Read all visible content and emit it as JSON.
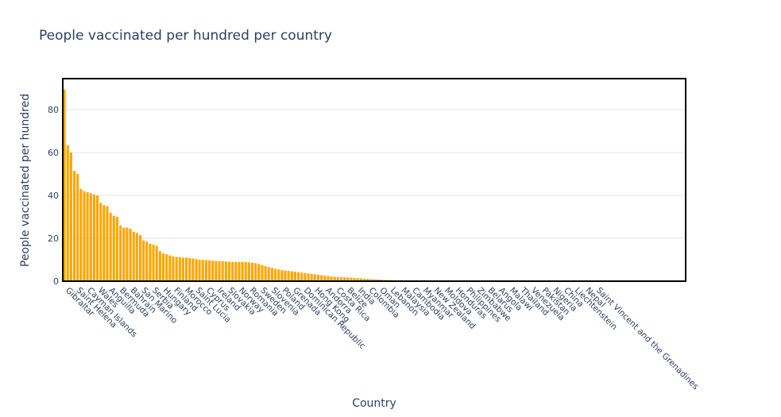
{
  "chart_data": {
    "type": "bar",
    "title": "People vaccinated per hundred per country",
    "xlabel": "Country",
    "ylabel": "People vaccinated per hundred",
    "ylim": [
      0,
      94.5
    ],
    "yticks": [
      0,
      20,
      40,
      60,
      80
    ],
    "grid": true,
    "bar_color": "#FFA500",
    "labeled_categories": [
      "Gibraltar",
      "Saint Helena",
      "Cayman Islands",
      "Wales",
      "Anguilla",
      "Bermuda",
      "Bahrain",
      "San Marino",
      "Serbia",
      "Hungary",
      "Finland",
      "Morocco",
      "Saint Lucia",
      "Cyprus",
      "Ireland",
      "Slovakia",
      "Norway",
      "Romania",
      "Sweden",
      "Slovenia",
      "Poland",
      "Grenada",
      "Dominican Republic",
      "Hong Kong",
      "Andorra",
      "Costa Rica",
      "Belize",
      "India",
      "Colombia",
      "Oman",
      "Lebanon",
      "Malaysia",
      "Cambodia",
      "Myanmar",
      "New Zealand",
      "Moldova",
      "Honduras",
      "Philippines",
      "Zimbabwe",
      "Belarus",
      "Angola",
      "Malawi",
      "Thailand",
      "Venezuela",
      "Pakistan",
      "Nigeria",
      "China",
      "Liechtenstein",
      "Nepal",
      "Saint Vincent and the Grenadines"
    ],
    "values": [
      89.5,
      63.5,
      60.0,
      51.5,
      50.0,
      43.0,
      42.0,
      41.5,
      41.0,
      40.5,
      40.0,
      36.5,
      35.5,
      35.0,
      32.0,
      30.5,
      30.0,
      26.0,
      25.0,
      25.0,
      24.5,
      23.0,
      22.5,
      21.5,
      19.0,
      18.5,
      17.5,
      17.0,
      16.5,
      14.0,
      13.0,
      12.5,
      12.0,
      11.5,
      11.3,
      11.2,
      11.0,
      11.0,
      10.8,
      10.6,
      10.3,
      10.0,
      9.9,
      9.8,
      9.7,
      9.6,
      9.5,
      9.4,
      9.3,
      9.2,
      9.1,
      9.0,
      9.0,
      9.0,
      9.0,
      8.9,
      8.8,
      8.6,
      8.4,
      8.0,
      7.5,
      7.0,
      6.6,
      6.2,
      5.8,
      5.5,
      5.2,
      5.0,
      4.8,
      4.6,
      4.4,
      4.2,
      4.0,
      3.8,
      3.6,
      3.4,
      3.2,
      3.0,
      2.8,
      2.6,
      2.4,
      2.2,
      2.1,
      2.0,
      1.9,
      1.8,
      1.7,
      1.6,
      1.5,
      1.4,
      1.3,
      1.2,
      1.1,
      1.0,
      0.9,
      0.8,
      0.7,
      0.6,
      0.55,
      0.5,
      0.45,
      0.4,
      0.36,
      0.32,
      0.28,
      0.25,
      0.22,
      0.2,
      0.18,
      0.16,
      0.14,
      0.12,
      0.11,
      0.1,
      0.09,
      0.08,
      0.07,
      0.06,
      0.05,
      0.05,
      0.04,
      0.04,
      0.03,
      0.03,
      0.03,
      0.02,
      0.02,
      0.02,
      0.02,
      0.01,
      0.01,
      0.01,
      0.01,
      0.01,
      0.01,
      0.01,
      0.01,
      0.01,
      0.01,
      0.01,
      0.01,
      0.01,
      0.01,
      0.01,
      0.01,
      0.01,
      0.01,
      0.01,
      0.01,
      0.01,
      0.01,
      0.01,
      0.01,
      0.01,
      0.01,
      0.01,
      0.01,
      0.01,
      0.01,
      0.01,
      0.01,
      0.01,
      0.01,
      0.01,
      0.01,
      0.01,
      0.01,
      0.01,
      0.01,
      0.01,
      0.01,
      0.01,
      0.01,
      0.01,
      0.01,
      0.01,
      0.01,
      0.01,
      0.01,
      0.01,
      0.01,
      0.01,
      0.01,
      0.01,
      0.01,
      0.01,
      0.01,
      0.01,
      0.01
    ]
  }
}
